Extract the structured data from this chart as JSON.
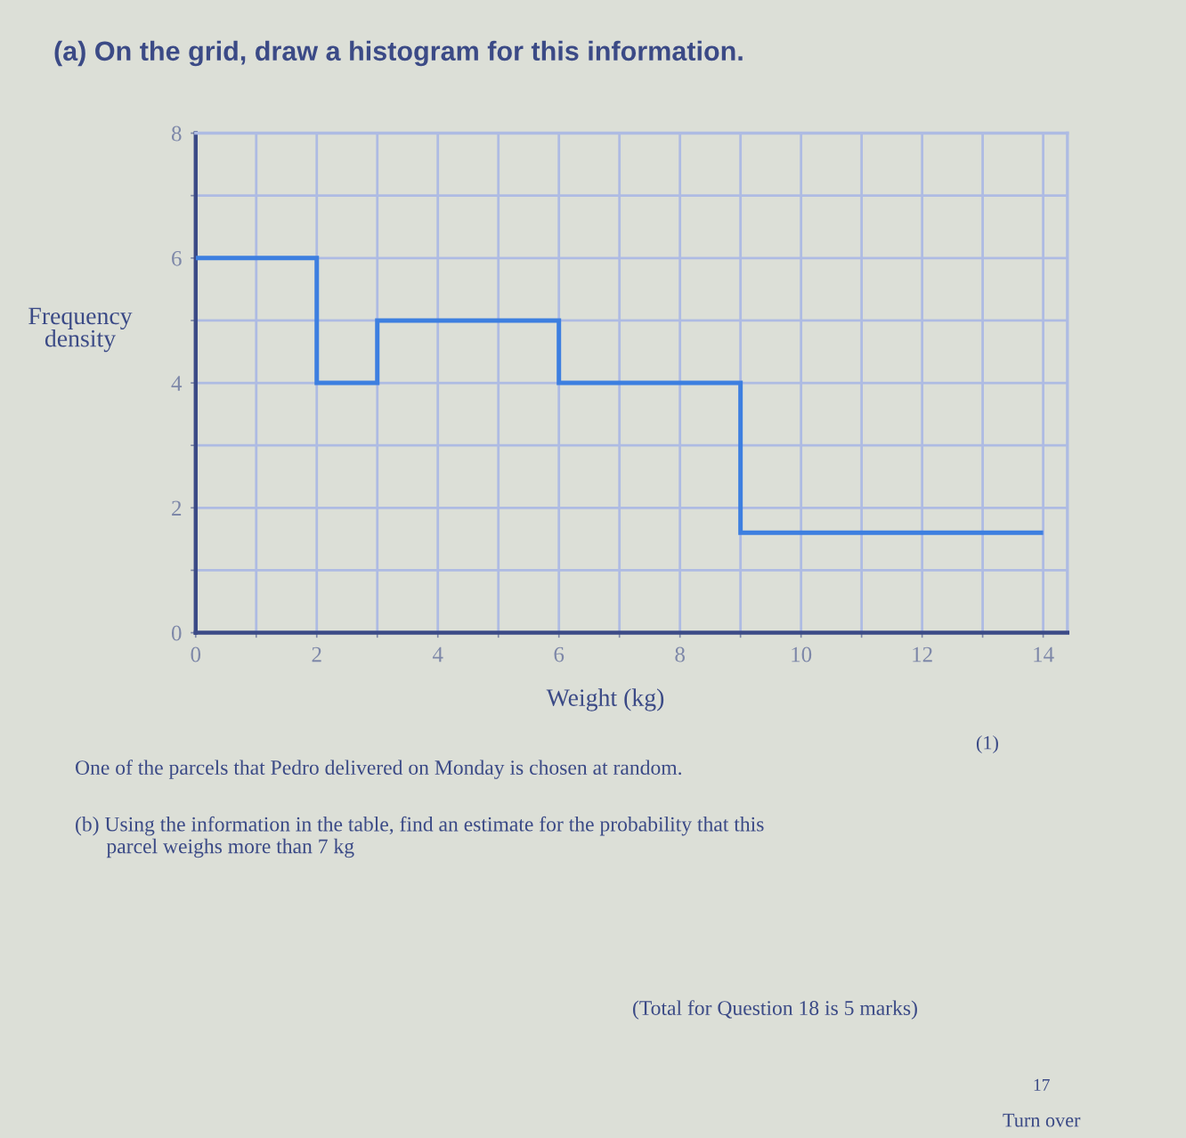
{
  "chart_data": {
    "type": "histogram",
    "title": "(a) On the grid, draw a histogram for this information.",
    "xlabel": "Weight (kg)",
    "ylabel": "Frequency\ndensity",
    "bins": [
      0,
      2,
      3,
      6,
      9,
      14
    ],
    "values": [
      6,
      4,
      5,
      4,
      1.6
    ],
    "color": "#3d7fe0",
    "xlim": [
      0,
      14.4
    ],
    "ylim": [
      0,
      8
    ],
    "xticks": [
      0,
      {
        "value": 1,
        "label": null
      },
      2,
      {
        "value": 3,
        "label": null
      },
      4,
      {
        "value": 5,
        "label": null
      },
      6,
      {
        "value": 7,
        "label": null
      },
      8,
      {
        "value": 9,
        "label": null
      },
      10,
      {
        "value": 11,
        "label": null
      },
      12,
      {
        "value": 13,
        "label": null
      },
      14
    ],
    "yticks": [
      0,
      {
        "value": 1,
        "label": null
      },
      2,
      {
        "value": 3,
        "label": null
      },
      4,
      {
        "value": 5,
        "label": null
      },
      6,
      {
        "value": 7,
        "label": null
      },
      8
    ],
    "grid": true,
    "annotations": [
      "(1)",
      "One of the parcels that Pedro delivered on Monday is chosen at random.",
      "(b) Using the information in the table, find an estimate for the probability that this\n      parcel weighs more than 7 kg",
      "(Total for Question 18 is 5 marks)",
      "17",
      "Turn over"
    ]
  }
}
